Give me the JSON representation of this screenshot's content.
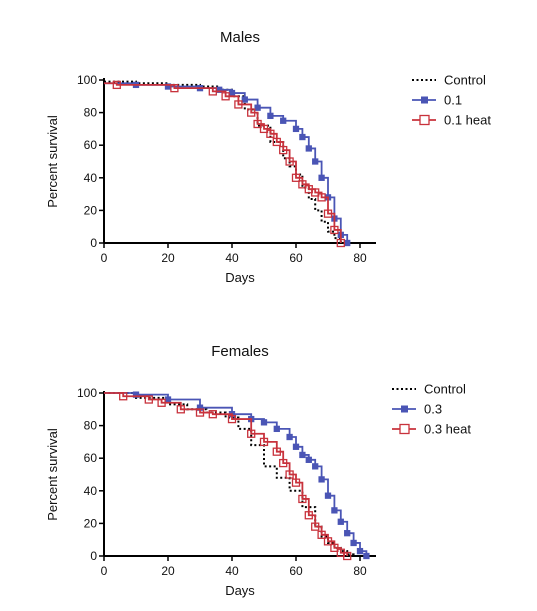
{
  "chart_data": [
    {
      "type": "line",
      "title": "Males",
      "xlabel": "Days",
      "ylabel": "Percent survival",
      "xlim": [
        0,
        85
      ],
      "ylim": [
        0,
        100
      ],
      "xticks": [
        "0",
        "20",
        "40",
        "60",
        "80"
      ],
      "yticks": [
        "0",
        "20",
        "40",
        "60",
        "80",
        "100"
      ],
      "legend_position": "right",
      "series": [
        {
          "name": "Control",
          "color": "#000000",
          "style": "dotted",
          "marker": "none",
          "x": [
            0,
            10,
            20,
            30,
            36,
            40,
            44,
            48,
            52,
            56,
            58,
            60,
            62,
            64,
            66,
            68,
            70,
            72,
            74
          ],
          "y": [
            99,
            98,
            97,
            96,
            94,
            90,
            82,
            72,
            62,
            52,
            47,
            42,
            34,
            27,
            20,
            13,
            7,
            3,
            0
          ]
        },
        {
          "name": "0.1",
          "color": "#4a55b5",
          "style": "solid",
          "marker": "square",
          "x": [
            0,
            10,
            20,
            30,
            36,
            40,
            44,
            48,
            52,
            56,
            60,
            62,
            64,
            66,
            68,
            70,
            72,
            74,
            76
          ],
          "y": [
            98,
            97,
            96,
            95,
            94,
            92,
            88,
            83,
            78,
            75,
            70,
            65,
            58,
            50,
            40,
            28,
            15,
            5,
            0
          ]
        },
        {
          "name": "0.1 heat",
          "color": "#c8323c",
          "style": "solid",
          "marker": "open-square",
          "x": [
            0,
            4,
            22,
            34,
            38,
            42,
            46,
            48,
            50,
            52,
            54,
            56,
            58,
            60,
            62,
            64,
            66,
            68,
            70,
            72,
            74
          ],
          "y": [
            98,
            97,
            95,
            93,
            90,
            85,
            80,
            73,
            70,
            67,
            62,
            57,
            50,
            40,
            36,
            33,
            31,
            28,
            18,
            8,
            0
          ]
        }
      ]
    },
    {
      "type": "line",
      "title": "Females",
      "xlabel": "Days",
      "ylabel": "Percent survival",
      "xlim": [
        0,
        85
      ],
      "ylim": [
        0,
        100
      ],
      "xticks": [
        "0",
        "20",
        "40",
        "60",
        "80"
      ],
      "yticks": [
        "0",
        "20",
        "40",
        "60",
        "80",
        "100"
      ],
      "legend_position": "right",
      "series": [
        {
          "name": "Control",
          "color": "#000000",
          "style": "dotted",
          "marker": "none",
          "x": [
            0,
            10,
            20,
            26,
            32,
            38,
            42,
            46,
            50,
            54,
            58,
            62,
            66,
            68,
            70,
            72,
            74,
            76,
            78
          ],
          "y": [
            100,
            97,
            93,
            90,
            88,
            85,
            78,
            68,
            55,
            48,
            40,
            30,
            18,
            12,
            8,
            5,
            3,
            1,
            0
          ]
        },
        {
          "name": "0.3",
          "color": "#4a55b5",
          "style": "solid",
          "marker": "square",
          "x": [
            0,
            10,
            20,
            30,
            40,
            46,
            50,
            54,
            58,
            60,
            62,
            64,
            66,
            68,
            70,
            72,
            74,
            76,
            78,
            80,
            82
          ],
          "y": [
            100,
            99,
            96,
            91,
            87,
            84,
            82,
            78,
            73,
            67,
            62,
            59,
            55,
            47,
            37,
            28,
            21,
            14,
            8,
            3,
            0
          ]
        },
        {
          "name": "0.3 heat",
          "color": "#c8323c",
          "style": "solid",
          "marker": "open-square",
          "x": [
            0,
            6,
            14,
            18,
            24,
            30,
            34,
            40,
            46,
            50,
            54,
            56,
            58,
            60,
            62,
            64,
            66,
            68,
            70,
            72,
            74,
            76
          ],
          "y": [
            100,
            98,
            96,
            94,
            90,
            88,
            87,
            84,
            75,
            70,
            64,
            57,
            50,
            45,
            35,
            25,
            18,
            13,
            9,
            5,
            2,
            0
          ]
        }
      ]
    }
  ]
}
